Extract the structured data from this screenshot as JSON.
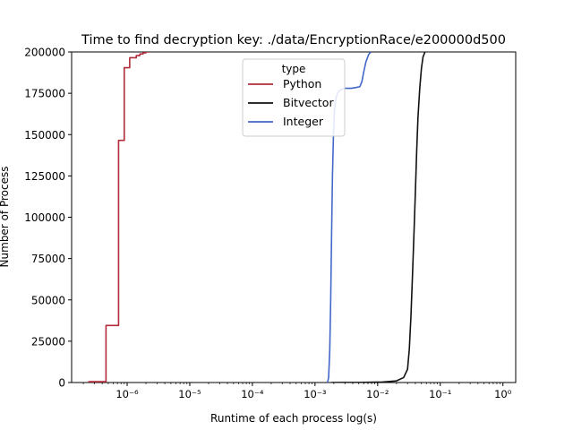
{
  "chart_data": {
    "type": "line",
    "title": "Time to find decryption key: ./data/EncryptionRace/e200000d500",
    "xlabel": "Runtime of each process log(s)",
    "ylabel": "Number of Process",
    "xscale": "log",
    "xlim": [
      1.3e-07,
      1.6
    ],
    "ylim": [
      0,
      200000
    ],
    "x_ticks": [
      {
        "value": 1e-06,
        "label": "10⁻⁶"
      },
      {
        "value": 1e-05,
        "label": "10⁻⁵"
      },
      {
        "value": 0.0001,
        "label": "10⁻⁴"
      },
      {
        "value": 0.001,
        "label": "10⁻³"
      },
      {
        "value": 0.01,
        "label": "10⁻²"
      },
      {
        "value": 0.1,
        "label": "10⁻¹"
      },
      {
        "value": 1,
        "label": "10⁰"
      }
    ],
    "y_ticks": [
      {
        "value": 0,
        "label": "0"
      },
      {
        "value": 25000,
        "label": "25000"
      },
      {
        "value": 50000,
        "label": "50000"
      },
      {
        "value": 75000,
        "label": "75000"
      },
      {
        "value": 100000,
        "label": "100000"
      },
      {
        "value": 125000,
        "label": "125000"
      },
      {
        "value": 150000,
        "label": "150000"
      },
      {
        "value": 175000,
        "label": "175000"
      },
      {
        "value": 200000,
        "label": "200000"
      }
    ],
    "grid": false,
    "legend": {
      "title": "type",
      "placement": "top-center"
    },
    "series": [
      {
        "name": "Python",
        "color": "#b22b3a",
        "step": true,
        "x": [
          2.4e-07,
          4.6e-07,
          4.6e-07,
          7.3e-07,
          7.3e-07,
          9e-07,
          9e-07,
          1.1e-06,
          1.1e-06,
          1.4e-06,
          1.4e-06,
          1.6e-06,
          1.6e-06,
          1.8e-06,
          1.8e-06,
          2e-06,
          2e-06,
          2.3e-06
        ],
        "y": [
          500,
          500,
          34500,
          34500,
          146500,
          146500,
          190500,
          190500,
          196500,
          196500,
          197800,
          197800,
          198800,
          198800,
          199500,
          199500,
          200000,
          200000
        ]
      },
      {
        "name": "Bitvector",
        "color": "#111111",
        "step": false,
        "x": [
          0.0018,
          0.005,
          0.012,
          0.02,
          0.026,
          0.03,
          0.032,
          0.034,
          0.036,
          0.038,
          0.04,
          0.042,
          0.044,
          0.047,
          0.05,
          0.053,
          0.057
        ],
        "y": [
          0,
          50,
          300,
          1000,
          3000,
          8000,
          20000,
          40000,
          65000,
          90000,
          115000,
          140000,
          160000,
          178000,
          190000,
          197000,
          200000
        ]
      },
      {
        "name": "Integer",
        "color": "#4267c8",
        "step": false,
        "x": [
          0.00158,
          0.00165,
          0.00172,
          0.00178,
          0.00184,
          0.0019,
          0.00197,
          0.00205,
          0.00215,
          0.0023,
          0.0025,
          0.003,
          0.0038,
          0.0045,
          0.0052,
          0.0056,
          0.006,
          0.0065,
          0.0072,
          0.0078
        ],
        "y": [
          0,
          3000,
          20000,
          50000,
          90000,
          125000,
          150000,
          165000,
          172000,
          175000,
          177000,
          178000,
          178000,
          178500,
          179000,
          182000,
          188000,
          194000,
          198500,
          200000
        ]
      }
    ]
  }
}
